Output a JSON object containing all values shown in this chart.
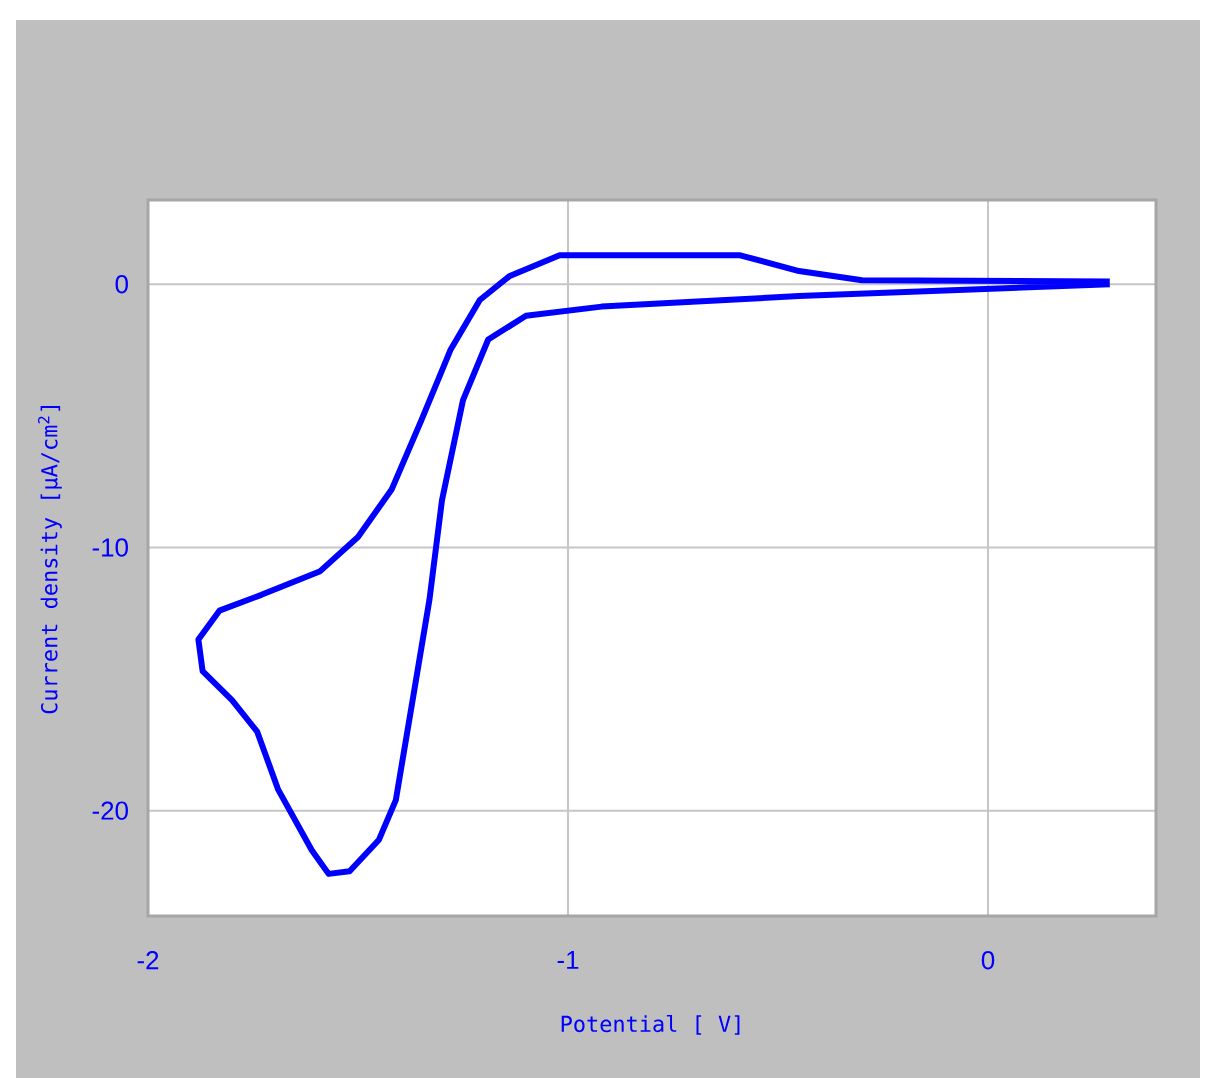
{
  "chart_data": {
    "type": "line",
    "xlabel": "Potential [ V]",
    "ylabel": "Current density [µA/cm$^{2}$]",
    "x": [
      0.29,
      -0.45,
      -0.92,
      -1.1,
      -1.19,
      -1.25,
      -1.3,
      -1.33,
      -1.37,
      -1.41,
      -1.45,
      -1.52,
      -1.57,
      -1.61,
      -1.69,
      -1.74,
      -1.8,
      -1.87,
      -1.88,
      -1.83,
      -1.73,
      -1.59,
      -1.5,
      -1.42,
      -1.35,
      -1.28,
      -1.21,
      -1.14,
      -1.02,
      -0.59,
      -0.45,
      -0.3,
      0.29
    ],
    "values": [
      0,
      -0.45,
      -0.85,
      -1.2,
      -2.1,
      -4.4,
      -8.2,
      -12,
      -15.8,
      -19.6,
      -21.1,
      -22.3,
      -22.4,
      -21.5,
      -19.2,
      -17,
      -15.8,
      -14.7,
      -13.5,
      -12.4,
      -11.8,
      -10.9,
      -9.6,
      -7.8,
      -5.2,
      -2.5,
      -0.6,
      0.3,
      1.1,
      1.1,
      0.5,
      0.15,
      0.1
    ],
    "color": "#0000ff",
    "xlim": [
      -2,
      0.4
    ],
    "ylim": [
      -24,
      3.2
    ],
    "xticks": [
      -2,
      -1,
      0
    ],
    "yticks": [
      -20,
      -10,
      0
    ],
    "grid": true
  }
}
